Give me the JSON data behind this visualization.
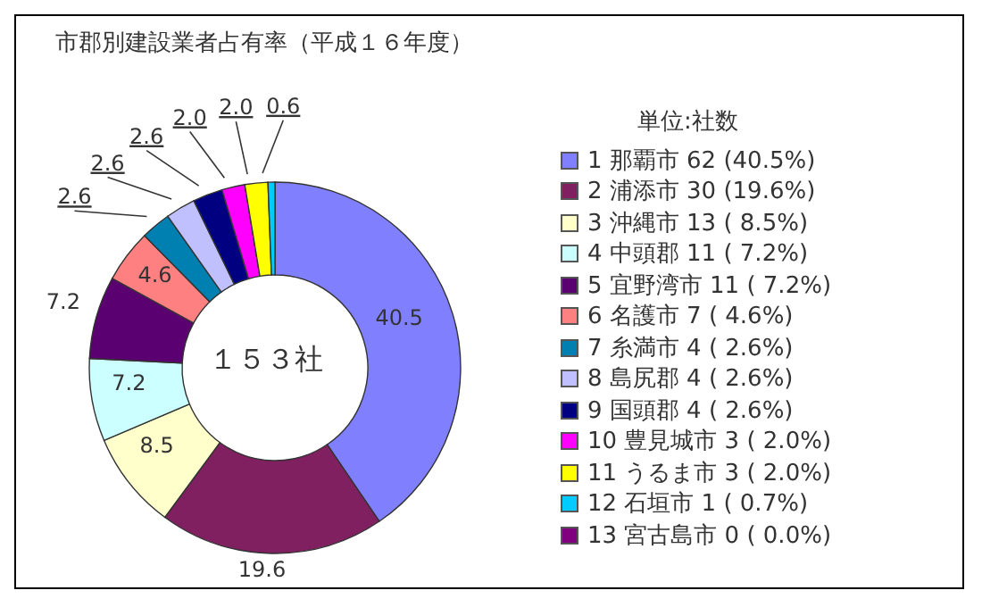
{
  "chart_data": {
    "type": "donut",
    "title": "市郡別建設業者占有率（平成１６年度）",
    "legend_title": "単位:社数",
    "legend": "right",
    "categories": [
      "1 那覇市 62 (40.5%)",
      "2 浦添市 30 (19.6%)",
      "3 沖縄市 13 ( 8.5%)",
      "4 中頭郡 11 ( 7.2%)",
      "5 宜野湾市 11 ( 7.2%)",
      "6 名護市 7 ( 4.6%)",
      "7 糸満市 4 ( 2.6%)",
      "8 島尻郡 4 ( 2.6%)",
      "9 国頭郡 4 ( 2.6%)",
      "10 豊見城市 3 ( 2.0%)",
      "11 うるま市 3 ( 2.0%)",
      "12 石垣市 1 ( 0.7%)",
      "13 宮古島市 0 ( 0.0%)"
    ],
    "values": [
      40.5,
      19.6,
      8.5,
      7.2,
      7.2,
      4.6,
      2.6,
      2.6,
      2.6,
      2.0,
      2.0,
      0.6,
      0
    ],
    "value_labels": [
      "40.5",
      "19.6",
      "8.5",
      "7.2",
      "7.2",
      "4.6",
      "2.6",
      "2.6",
      "2.6",
      "2.0",
      "2.0",
      "0.6",
      null
    ],
    "colors": [
      "#8080ff",
      "#802060",
      "#ffffcc",
      "#ccffff",
      "#5a0070",
      "#ff8080",
      "#0080b0",
      "#c0c0ff",
      "#000080",
      "#ff00ff",
      "#ffff00",
      "#00ccff",
      "#800080"
    ],
    "annotations": [
      "１５３社"
    ]
  }
}
